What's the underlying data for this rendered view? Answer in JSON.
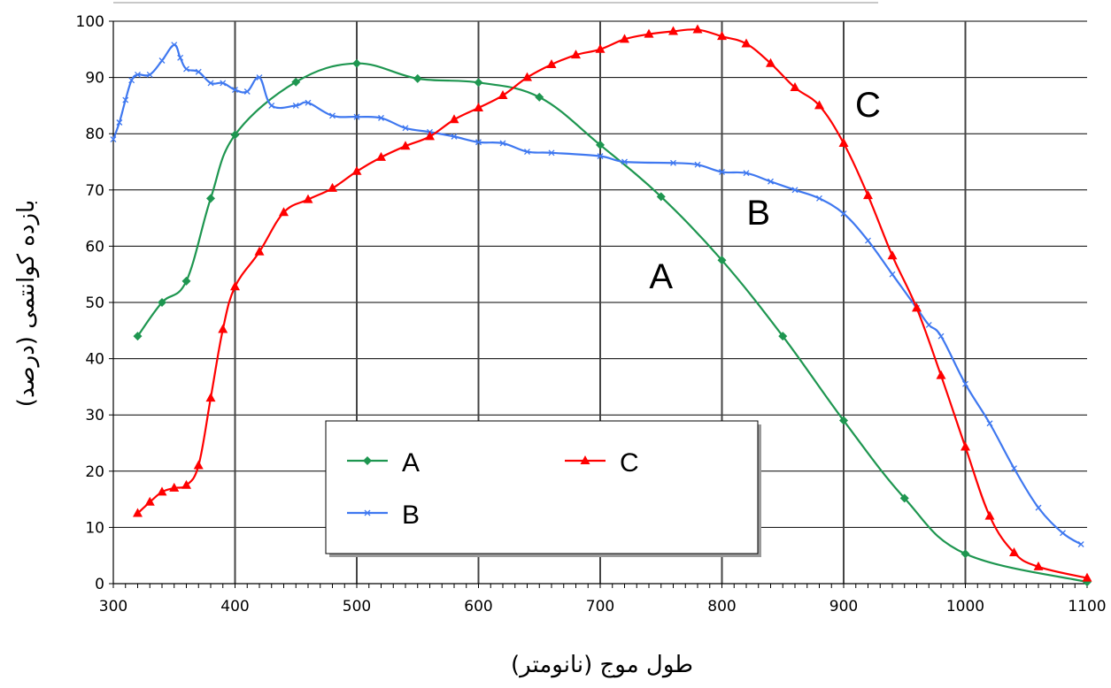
{
  "chart_data": {
    "type": "line",
    "xlabel": "طول موج (نانومتر)",
    "ylabel": "بازده کوانتمی (درصد)",
    "xlim": [
      300,
      1100
    ],
    "ylim": [
      0,
      100
    ],
    "x_ticks": [
      300,
      400,
      500,
      600,
      700,
      800,
      900,
      1000,
      1100
    ],
    "y_ticks": [
      0,
      10,
      20,
      30,
      40,
      50,
      60,
      70,
      80,
      90,
      100
    ],
    "x_tick_labels": [
      "300",
      "400",
      "500",
      "600",
      "700",
      "800",
      "900",
      "1000",
      "1100"
    ],
    "y_tick_labels": [
      "0",
      "10",
      "20",
      "30",
      "40",
      "50",
      "60",
      "70",
      "80",
      "90",
      "100"
    ],
    "grid": true,
    "legend_position": "bottom-center",
    "series": [
      {
        "name": "A",
        "color": "#1e9650",
        "marker": "diamond",
        "points": [
          [
            320,
            44
          ],
          [
            340,
            50
          ],
          [
            360,
            53.8
          ],
          [
            380,
            68.5
          ],
          [
            400,
            79.8
          ],
          [
            450,
            89.2
          ],
          [
            500,
            92.5
          ],
          [
            550,
            89.8
          ],
          [
            600,
            89.1
          ],
          [
            650,
            86.5
          ],
          [
            700,
            78
          ],
          [
            750,
            68.8
          ],
          [
            800,
            57.5
          ],
          [
            850,
            44
          ],
          [
            900,
            29
          ],
          [
            950,
            15.2
          ],
          [
            1000,
            5.3
          ],
          [
            1100,
            0.3
          ]
        ]
      },
      {
        "name": "B",
        "color": "#3f78f0",
        "marker": "x",
        "points": [
          [
            300,
            79
          ],
          [
            305,
            82
          ],
          [
            310,
            86
          ],
          [
            315,
            89.5
          ],
          [
            320,
            90.5
          ],
          [
            330,
            90.5
          ],
          [
            340,
            93
          ],
          [
            350,
            95.8
          ],
          [
            355,
            93.5
          ],
          [
            360,
            91.5
          ],
          [
            370,
            91
          ],
          [
            380,
            89
          ],
          [
            390,
            89
          ],
          [
            400,
            87.8
          ],
          [
            410,
            87.5
          ],
          [
            420,
            90
          ],
          [
            430,
            85
          ],
          [
            450,
            85
          ],
          [
            460,
            85.5
          ],
          [
            480,
            83.2
          ],
          [
            500,
            83
          ],
          [
            520,
            82.8
          ],
          [
            540,
            81
          ],
          [
            560,
            80.3
          ],
          [
            580,
            79.5
          ],
          [
            600,
            78.5
          ],
          [
            620,
            78.3
          ],
          [
            640,
            76.8
          ],
          [
            660,
            76.6
          ],
          [
            700,
            76
          ],
          [
            720,
            75
          ],
          [
            760,
            74.8
          ],
          [
            780,
            74.5
          ],
          [
            800,
            73.2
          ],
          [
            820,
            73
          ],
          [
            840,
            71.5
          ],
          [
            860,
            70
          ],
          [
            880,
            68.5
          ],
          [
            900,
            65.8
          ],
          [
            920,
            61
          ],
          [
            940,
            55
          ],
          [
            960,
            49
          ],
          [
            970,
            46
          ],
          [
            980,
            44
          ],
          [
            1000,
            35.5
          ],
          [
            1020,
            28.5
          ],
          [
            1040,
            20.5
          ],
          [
            1060,
            13.5
          ],
          [
            1080,
            9
          ],
          [
            1095,
            7
          ]
        ]
      },
      {
        "name": "C",
        "color": "#ff0000",
        "marker": "triangle",
        "points": [
          [
            320,
            12.5
          ],
          [
            330,
            14.5
          ],
          [
            340,
            16.3
          ],
          [
            350,
            17
          ],
          [
            360,
            17.5
          ],
          [
            370,
            21
          ],
          [
            380,
            33
          ],
          [
            390,
            45.2
          ],
          [
            400,
            52.8
          ],
          [
            420,
            59
          ],
          [
            440,
            66
          ],
          [
            460,
            68.3
          ],
          [
            480,
            70.3
          ],
          [
            500,
            73.3
          ],
          [
            520,
            75.8
          ],
          [
            540,
            77.8
          ],
          [
            560,
            79.5
          ],
          [
            580,
            82.5
          ],
          [
            600,
            84.6
          ],
          [
            620,
            86.8
          ],
          [
            640,
            90
          ],
          [
            660,
            92.3
          ],
          [
            680,
            94
          ],
          [
            700,
            95
          ],
          [
            720,
            96.8
          ],
          [
            740,
            97.7
          ],
          [
            760,
            98.2
          ],
          [
            780,
            98.5
          ],
          [
            800,
            97.3
          ],
          [
            820,
            96
          ],
          [
            840,
            92.5
          ],
          [
            860,
            88.2
          ],
          [
            880,
            85
          ],
          [
            900,
            78.3
          ],
          [
            920,
            69
          ],
          [
            940,
            58.3
          ],
          [
            960,
            49
          ],
          [
            980,
            37
          ],
          [
            1000,
            24.3
          ],
          [
            1020,
            12
          ],
          [
            1040,
            5.5
          ],
          [
            1060,
            3
          ],
          [
            1100,
            1
          ]
        ]
      }
    ],
    "annotations": [
      {
        "text": "A",
        "x": 750,
        "y": 52.5
      },
      {
        "text": "B",
        "x": 830,
        "y": 63.8
      },
      {
        "text": "C",
        "x": 920,
        "y": 83
      }
    ]
  }
}
